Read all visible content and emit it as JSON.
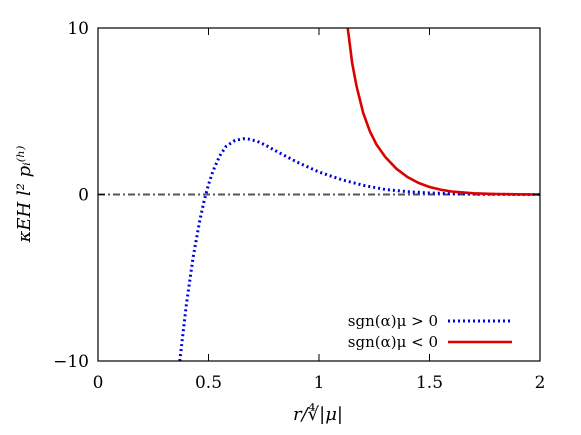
{
  "chart_data": {
    "type": "line",
    "xlabel": "r/∜|μ|",
    "ylabel": "κEH l² pᵢ⁽ʰ⁾",
    "xlim": [
      0,
      2
    ],
    "ylim": [
      -10,
      10
    ],
    "xticks": [
      0,
      0.5,
      1,
      1.5,
      2
    ],
    "xtick_labels": [
      "0",
      "0.5",
      "1",
      "1.5",
      "2"
    ],
    "yticks": [
      -10,
      0,
      10
    ],
    "ytick_labels": [
      "−10",
      "0",
      "10"
    ],
    "grid": false,
    "legend_position": "bottom-right",
    "reference_line": {
      "y": 0,
      "style": "dash-dot",
      "color": "#555555"
    },
    "series": [
      {
        "name": "sgn(α)μ > 0",
        "color": "#0000dd",
        "style": "dotted",
        "x": [
          0.37,
          0.4,
          0.43,
          0.46,
          0.48,
          0.5,
          0.52,
          0.55,
          0.58,
          0.62,
          0.66,
          0.68,
          0.72,
          0.76,
          0.8,
          0.85,
          0.9,
          0.95,
          1.0,
          1.1,
          1.2,
          1.3,
          1.4,
          1.5,
          1.6,
          1.7,
          1.8,
          1.9,
          2.0
        ],
        "y": [
          -10.0,
          -6.6,
          -3.8,
          -1.6,
          -0.4,
          0.6,
          1.4,
          2.3,
          2.9,
          3.25,
          3.35,
          3.33,
          3.2,
          2.95,
          2.65,
          2.3,
          1.95,
          1.65,
          1.35,
          0.9,
          0.55,
          0.3,
          0.17,
          0.09,
          0.05,
          0.02,
          0.01,
          0.0,
          0.0
        ]
      },
      {
        "name": "sgn(α)μ < 0",
        "color": "#dd0000",
        "style": "solid",
        "x": [
          1.13,
          1.15,
          1.17,
          1.2,
          1.23,
          1.26,
          1.3,
          1.35,
          1.4,
          1.45,
          1.5,
          1.55,
          1.6,
          1.7,
          1.8,
          1.9,
          2.0
        ],
        "y": [
          10.0,
          7.9,
          6.5,
          4.9,
          3.8,
          3.0,
          2.25,
          1.55,
          1.05,
          0.7,
          0.45,
          0.29,
          0.18,
          0.07,
          0.03,
          0.01,
          0.0
        ]
      }
    ]
  }
}
